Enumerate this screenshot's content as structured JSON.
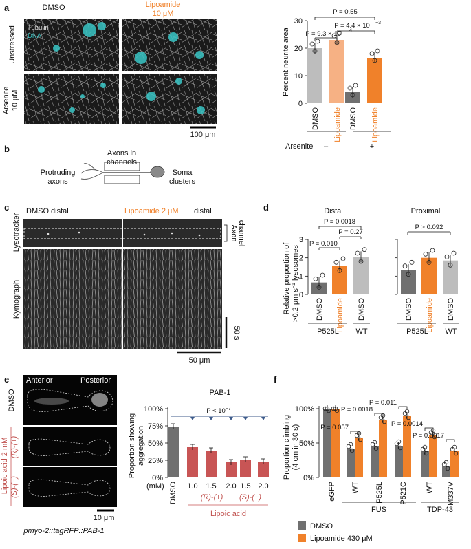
{
  "panel_labels": {
    "a": "a",
    "b": "b",
    "c": "c",
    "d": "d",
    "e": "e",
    "f": "f"
  },
  "colors": {
    "orange": "#f0812a",
    "light_orange": "#f6b184",
    "gray": "#bdbdbd",
    "dark_gray": "#707070",
    "red": "#c85555",
    "cyan": "#39c6c6",
    "blue_line": "#3c5a8a"
  },
  "a": {
    "col_dmso": "DMSO",
    "col_lipo_line1": "Lipoamide",
    "col_lipo_line2": "10 μM",
    "row_unstressed": "Unstressed",
    "row_ars_line1": "Arsenite",
    "row_ars_line2": "10 μM",
    "stain_tubulin": "Tubulin",
    "stain_dna": "DNA",
    "scalebar": "100 μm",
    "p_top": "P = 0.55",
    "p_mid": "P = 4.4 × 10",
    "p_mid_exp": "−3",
    "p_left": "P = 9.3 × 10",
    "p_left_exp": "−4",
    "ylabel": "Percent neurite area",
    "yticks": [
      "0",
      "10",
      "20",
      "30"
    ],
    "xlabels": [
      "DMSO",
      "Lipoamide",
      "DMSO",
      "Lipoamide"
    ],
    "arsenite_label": "Arsenite",
    "arsenite_minus": "–",
    "arsenite_plus": "+"
  },
  "b": {
    "axons_channels_1": "Axons in",
    "axons_channels_2": "channels",
    "protruding_1": "Protruding",
    "protruding_2": "axons",
    "soma_1": "Soma",
    "soma_2": "clusters"
  },
  "c": {
    "title_dmso": "DMSO distal",
    "title_lipo": "Lipoamide 2 μM",
    "title_distal": "distal",
    "axon_1": "Axon",
    "axon_2": "channel",
    "lysotracker": "Lysotracker",
    "kymograph": "Kymograph",
    "scale_t": "50 s",
    "scale_x": "50 μm"
  },
  "d": {
    "title_distal": "Distal",
    "title_proximal": "Proximal",
    "ylabel_1": "Relative proportion of",
    "ylabel_2": ">0.2 μm s",
    "ylabel_2_exp": "−1",
    "ylabel_2_tail": " lysosomes",
    "yticks": [
      "0",
      "1",
      "2",
      "3"
    ],
    "p1": "P = 0.0018",
    "p2": "P = 0.010",
    "p3": "P = 0.27",
    "p4": "P > 0.092",
    "xlabels": [
      "DMSO",
      "Lipoamide",
      "DMSO"
    ],
    "group_p525l": "P525L",
    "group_wt": "WT"
  },
  "e": {
    "anterior": "Anterior",
    "posterior": "Posterior",
    "row_dmso": "DMSO",
    "row_lipoic": "Lipoic acid 2 mM",
    "row_r": "(R)-(+)",
    "row_s": "(S)-(−)",
    "scalebar": "10 μm",
    "strain": "pmyo-2::tagRFP::PAB-1",
    "chart_title": "PAB-1",
    "pval": "P < 10",
    "pval_exp": "−7",
    "ylabel_1": "Proportion showing",
    "ylabel_2": "aggregation",
    "yticks": [
      "0%",
      "25%",
      "50%",
      "75%",
      "100%"
    ],
    "mm": "(mM)",
    "doses": [
      "1.0",
      "1.5",
      "2.0",
      "1.5",
      "2.0"
    ],
    "dmso": "DMSO",
    "r_label": "(R)-(+)",
    "s_label": "(S)-(−)",
    "lipoic_label": "Lipoic acid"
  },
  "f": {
    "ylabel_1": "Proportion climbing",
    "ylabel_2": "(4 cm in 30 s)",
    "yticks": [
      "0%",
      "50%",
      "100%"
    ],
    "p1": "P = 0.057",
    "p2": "P = 0.0018",
    "p3": "P = 0.011",
    "p4": "P = 0.0014",
    "p5": "P = 0.0017",
    "xlabels": [
      "eGFP",
      "WT",
      "P525L",
      "P521C",
      "WT",
      "M337V"
    ],
    "group_fus": "FUS",
    "group_tdp": "TDP-43",
    "legend_dmso": "DMSO",
    "legend_lipo": "Lipoamide 430 μM"
  },
  "chart_data": [
    {
      "type": "bar",
      "panel": "a",
      "categories": [
        "DMSO unstressed",
        "Lipoamide unstressed",
        "DMSO arsenite",
        "Lipoamide arsenite"
      ],
      "values": [
        20,
        23,
        4,
        16.5
      ],
      "ylim": [
        0,
        30
      ],
      "ylabel": "Percent neurite area"
    },
    {
      "type": "bar",
      "panel": "d-distal",
      "categories": [
        "DMSO P525L",
        "Lipoamide P525L",
        "DMSO WT"
      ],
      "values": [
        0.65,
        1.55,
        2.05
      ],
      "ylim": [
        0,
        3
      ]
    },
    {
      "type": "bar",
      "panel": "d-proximal",
      "categories": [
        "DMSO P525L",
        "Lipoamide P525L",
        "DMSO WT"
      ],
      "values": [
        1.35,
        2.0,
        1.85
      ],
      "ylim": [
        0,
        3
      ]
    },
    {
      "type": "bar",
      "panel": "e",
      "title": "PAB-1",
      "categories": [
        "DMSO",
        "(R)-(+) 1.0",
        "(R)-(+) 1.5",
        "(R)-(+) 2.0",
        "(S)-(−) 1.5",
        "(S)-(−) 2.0"
      ],
      "values": [
        74,
        44,
        39,
        22,
        26,
        23
      ],
      "ylim": [
        0,
        100
      ]
    },
    {
      "type": "bar",
      "panel": "f",
      "categories": [
        "eGFP",
        "FUS WT",
        "FUS P525L",
        "FUS P521C",
        "TDP-43 WT",
        "TDP-43 M337V"
      ],
      "series": [
        {
          "name": "DMSO",
          "values": [
            100,
            42,
            45,
            46,
            38,
            16
          ]
        },
        {
          "name": "Lipoamide 430 μM",
          "values": [
            100,
            58,
            84,
            90,
            62,
            38
          ]
        }
      ],
      "ylim": [
        0,
        100
      ]
    }
  ]
}
